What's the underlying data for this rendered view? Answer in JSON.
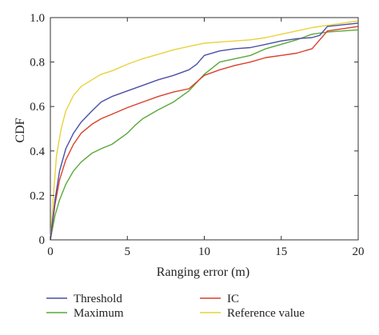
{
  "chart_data": {
    "type": "line",
    "title": "",
    "xlabel": "Ranging error (m)",
    "ylabel": "CDF",
    "xlim": [
      0,
      20
    ],
    "ylim": [
      0,
      1.0
    ],
    "xticks": [
      "0",
      "5",
      "10",
      "15",
      "20"
    ],
    "yticks": [
      "0",
      "0.2",
      "0.4",
      "0.6",
      "0.8",
      "1.0"
    ],
    "grid": false,
    "legend_position": "bottom",
    "series": [
      {
        "name": "Threshold",
        "color": "#4b4fa6",
        "x": [
          0,
          0.3,
          0.6,
          1.0,
          1.5,
          2.0,
          2.7,
          3.3,
          4.0,
          5.0,
          6.0,
          7.0,
          8.0,
          9.0,
          9.5,
          10.0,
          11.0,
          12.0,
          13.0,
          14.0,
          15.0,
          16.0,
          17.0,
          17.5,
          18.0,
          20.0
        ],
        "values": [
          0.0,
          0.18,
          0.31,
          0.41,
          0.48,
          0.53,
          0.58,
          0.62,
          0.645,
          0.67,
          0.695,
          0.72,
          0.74,
          0.765,
          0.79,
          0.83,
          0.85,
          0.86,
          0.865,
          0.88,
          0.895,
          0.905,
          0.91,
          0.92,
          0.96,
          0.975
        ]
      },
      {
        "name": "IC",
        "color": "#d9402a",
        "x": [
          0,
          0.3,
          0.6,
          1.0,
          1.5,
          2.0,
          2.7,
          3.3,
          4.0,
          5.0,
          6.0,
          7.0,
          8.0,
          9.0,
          10.0,
          11.0,
          12.0,
          13.0,
          14.0,
          15.0,
          16.0,
          17.0,
          17.5,
          18.0,
          19.0,
          20.0
        ],
        "values": [
          0.0,
          0.16,
          0.27,
          0.36,
          0.43,
          0.48,
          0.52,
          0.545,
          0.565,
          0.595,
          0.62,
          0.645,
          0.665,
          0.68,
          0.74,
          0.765,
          0.785,
          0.8,
          0.82,
          0.83,
          0.84,
          0.86,
          0.9,
          0.94,
          0.95,
          0.96
        ]
      },
      {
        "name": "Maximum",
        "color": "#5aa83a",
        "x": [
          0,
          0.3,
          0.6,
          1.0,
          1.5,
          2.0,
          2.7,
          3.3,
          4.0,
          5.0,
          5.5,
          6.0,
          7.0,
          8.0,
          9.0,
          10.0,
          11.0,
          12.0,
          13.0,
          14.0,
          15.0,
          16.0,
          17.0,
          18.0,
          19.0,
          20.0
        ],
        "values": [
          0.0,
          0.11,
          0.18,
          0.25,
          0.31,
          0.35,
          0.39,
          0.41,
          0.43,
          0.48,
          0.515,
          0.545,
          0.585,
          0.62,
          0.67,
          0.745,
          0.8,
          0.815,
          0.83,
          0.86,
          0.88,
          0.9,
          0.925,
          0.935,
          0.94,
          0.945
        ]
      },
      {
        "name": "Reference value",
        "color": "#e8d23c",
        "x": [
          0,
          0.2,
          0.4,
          0.7,
          1.0,
          1.5,
          2.0,
          2.7,
          3.3,
          4.0,
          5.0,
          6.0,
          7.0,
          8.0,
          9.0,
          10.0,
          11.0,
          12.0,
          13.0,
          14.0,
          15.0,
          16.0,
          17.0,
          18.0,
          19.0,
          20.0
        ],
        "values": [
          0.0,
          0.2,
          0.38,
          0.5,
          0.58,
          0.65,
          0.69,
          0.72,
          0.745,
          0.76,
          0.79,
          0.815,
          0.835,
          0.855,
          0.87,
          0.885,
          0.89,
          0.895,
          0.9,
          0.91,
          0.925,
          0.94,
          0.955,
          0.965,
          0.975,
          0.985
        ]
      }
    ]
  }
}
